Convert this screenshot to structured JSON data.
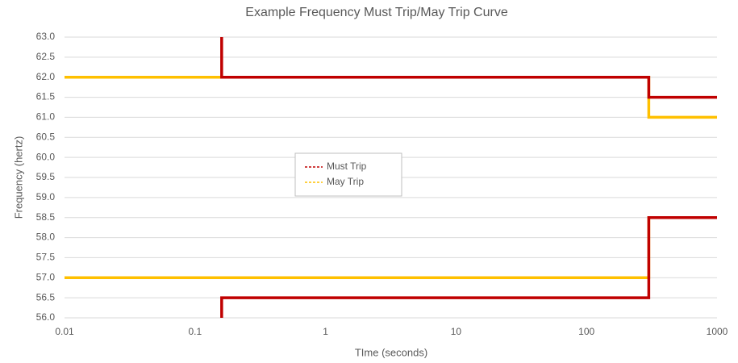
{
  "chart_data": {
    "type": "line",
    "title": "Example Frequency Must Trip/May Trip Curve",
    "x_label": "TIme (seconds)",
    "y_label": "Frequency (hertz)",
    "x_scale": "log",
    "grid": true,
    "xlim": [
      0.01,
      1000
    ],
    "xticks": [
      0.01,
      0.1,
      1,
      10,
      100,
      1000
    ],
    "ylim": [
      56,
      63
    ],
    "yticks": [
      {
        "value": 56,
        "label": "56.0"
      },
      {
        "value": 56.5,
        "label": "56.5"
      },
      {
        "value": 57,
        "label": "57.0"
      },
      {
        "value": 57.5,
        "label": "57.5"
      },
      {
        "value": 58,
        "label": "58.0"
      },
      {
        "value": 58.5,
        "label": "58.5"
      },
      {
        "value": 59,
        "label": "59.0"
      },
      {
        "value": 59.5,
        "label": "59.5"
      },
      {
        "value": 60,
        "label": "60.0"
      },
      {
        "value": 60.5,
        "label": "60.5"
      },
      {
        "value": 61,
        "label": "61.0"
      },
      {
        "value": 61.5,
        "label": "61.5"
      },
      {
        "value": 62,
        "label": "62.0"
      },
      {
        "value": 62.5,
        "label": "62.5"
      },
      {
        "value": 63,
        "label": "63.0"
      }
    ],
    "series": [
      {
        "name": "May Trip",
        "color": "#ffc000",
        "x": [
          0.01,
          300,
          300,
          1000,
          null,
          0.01,
          300,
          300,
          1000
        ],
        "values": [
          62,
          62,
          61,
          61,
          null,
          57,
          57,
          58.5,
          58.5
        ]
      },
      {
        "name": "Must Trip",
        "color": "#c00000",
        "x": [
          0.16,
          0.16,
          300,
          300,
          1000,
          null,
          0.16,
          0.16,
          300,
          300,
          1000
        ],
        "values": [
          63,
          62,
          62,
          61.5,
          61.5,
          null,
          56,
          56.5,
          56.5,
          58.5,
          58.5
        ]
      }
    ]
  }
}
